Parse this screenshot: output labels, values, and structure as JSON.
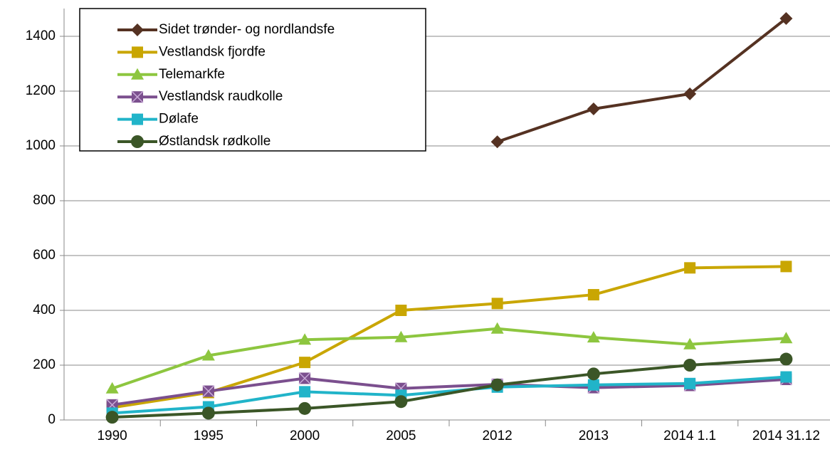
{
  "chart_data": {
    "type": "line",
    "categories": [
      "1990",
      "1995",
      "2000",
      "2005",
      "2012",
      "2013",
      "2014 1.1",
      "2014 31.12"
    ],
    "ylim": [
      0,
      1400
    ],
    "yticks": [
      0,
      200,
      400,
      600,
      800,
      1000,
      1200,
      1400
    ],
    "grid": true,
    "legend": "top-left",
    "series": [
      {
        "name": "Sidet trønder- og nordlandsfe",
        "color": "#553222",
        "marker": "diamond",
        "values": [
          null,
          null,
          null,
          null,
          1015,
          1135,
          1190,
          1465
        ]
      },
      {
        "name": "Vestlandsk fjordfe",
        "color": "#c9a602",
        "marker": "square",
        "values": [
          45,
          100,
          210,
          400,
          425,
          457,
          555,
          560
        ]
      },
      {
        "name": "Telemarkfe",
        "color": "#8dc63f",
        "marker": "triangle",
        "values": [
          115,
          235,
          293,
          302,
          333,
          301,
          276,
          298
        ]
      },
      {
        "name": "Vestlandsk raudkolle",
        "color": "#7b4f8e",
        "marker": "xsquare",
        "values": [
          55,
          105,
          152,
          115,
          130,
          118,
          126,
          148
        ]
      },
      {
        "name": "Dølafe",
        "color": "#21b4c9",
        "marker": "square",
        "values": [
          25,
          48,
          103,
          90,
          120,
          128,
          133,
          157
        ]
      },
      {
        "name": "Østlandsk rødkolle",
        "color": "#3b5627",
        "marker": "circle",
        "values": [
          10,
          25,
          42,
          67,
          128,
          168,
          200,
          222
        ]
      }
    ]
  }
}
